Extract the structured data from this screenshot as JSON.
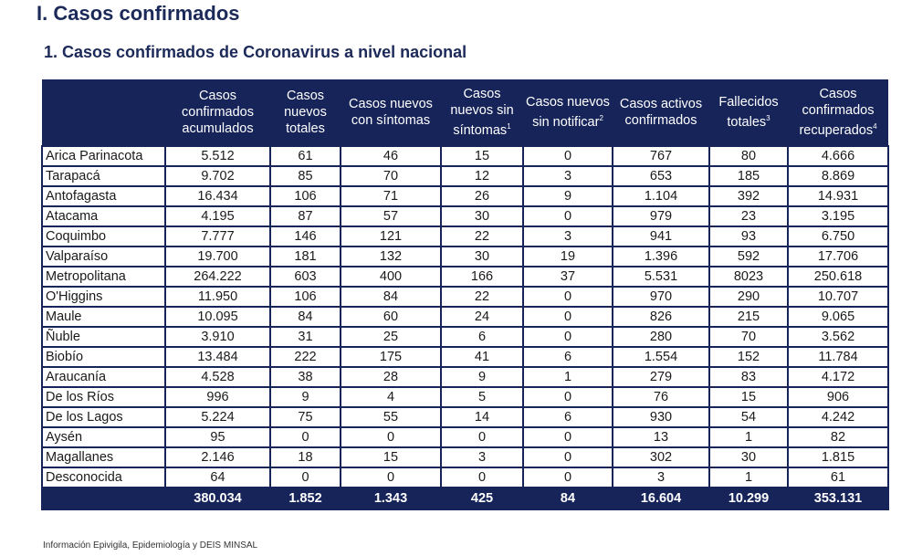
{
  "section_title": "I. Casos confirmados",
  "subtitle": "1. Casos confirmados de Coronavirus a nivel nacional",
  "columns": [
    {
      "label": "",
      "sup": ""
    },
    {
      "label": "Casos confirmados acumulados",
      "sup": ""
    },
    {
      "label": "Casos nuevos totales",
      "sup": ""
    },
    {
      "label": "Casos nuevos con síntomas",
      "sup": ""
    },
    {
      "label": "Casos nuevos sin síntomas",
      "sup": "1"
    },
    {
      "label": "Casos nuevos sin notificar",
      "sup": "2"
    },
    {
      "label": "Casos activos confirmados",
      "sup": ""
    },
    {
      "label": "Fallecidos totales",
      "sup": "3"
    },
    {
      "label": "Casos confirmados recuperados",
      "sup": "4"
    }
  ],
  "rows": [
    [
      "Arica Parinacota",
      "5.512",
      "61",
      "46",
      "15",
      "0",
      "767",
      "80",
      "4.666"
    ],
    [
      "Tarapacá",
      "9.702",
      "85",
      "70",
      "12",
      "3",
      "653",
      "185",
      "8.869"
    ],
    [
      "Antofagasta",
      "16.434",
      "106",
      "71",
      "26",
      "9",
      "1.104",
      "392",
      "14.931"
    ],
    [
      "Atacama",
      "4.195",
      "87",
      "57",
      "30",
      "0",
      "979",
      "23",
      "3.195"
    ],
    [
      "Coquimbo",
      "7.777",
      "146",
      "121",
      "22",
      "3",
      "941",
      "93",
      "6.750"
    ],
    [
      "Valparaíso",
      "19.700",
      "181",
      "132",
      "30",
      "19",
      "1.396",
      "592",
      "17.706"
    ],
    [
      "Metropolitana",
      "264.222",
      "603",
      "400",
      "166",
      "37",
      "5.531",
      "8023",
      "250.618"
    ],
    [
      "O'Higgins",
      "11.950",
      "106",
      "84",
      "22",
      "0",
      "970",
      "290",
      "10.707"
    ],
    [
      "Maule",
      "10.095",
      "84",
      "60",
      "24",
      "0",
      "826",
      "215",
      "9.065"
    ],
    [
      "Ñuble",
      "3.910",
      "31",
      "25",
      "6",
      "0",
      "280",
      "70",
      "3.562"
    ],
    [
      "Biobío",
      "13.484",
      "222",
      "175",
      "41",
      "6",
      "1.554",
      "152",
      "11.784"
    ],
    [
      "Araucanía",
      "4.528",
      "38",
      "28",
      "9",
      "1",
      "279",
      "83",
      "4.172"
    ],
    [
      "De los Ríos",
      "996",
      "9",
      "4",
      "5",
      "0",
      "76",
      "15",
      "906"
    ],
    [
      "De los Lagos",
      "5.224",
      "75",
      "55",
      "14",
      "6",
      "930",
      "54",
      "4.242"
    ],
    [
      "Aysén",
      "95",
      "0",
      "0",
      "0",
      "0",
      "13",
      "1",
      "82"
    ],
    [
      "Magallanes",
      "2.146",
      "18",
      "15",
      "3",
      "0",
      "302",
      "30",
      "1.815"
    ],
    [
      "Desconocida",
      "64",
      "0",
      "0",
      "0",
      "0",
      "3",
      "1",
      "61"
    ]
  ],
  "totals": [
    "",
    "380.034",
    "1.852",
    "1.343",
    "425",
    "84",
    "16.604",
    "10.299",
    "353.131"
  ],
  "footnote": "Información Epivigila, Epidemiología y DEIS MINSAL",
  "colors": {
    "navy": "#16245a"
  }
}
